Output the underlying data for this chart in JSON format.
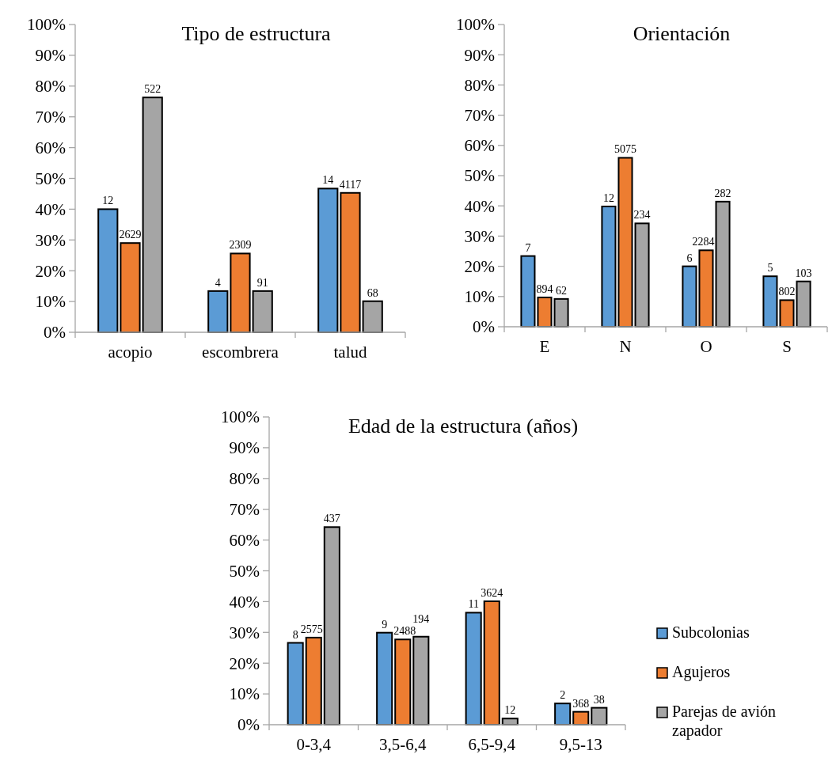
{
  "chart_data": [
    {
      "type": "bar",
      "title": "Tipo de estructura",
      "categories": [
        "acopio",
        "escombrera",
        "talud"
      ],
      "series": [
        {
          "color": "#5b9bd5",
          "values": [
            40,
            13.4,
            46.7
          ]
        },
        {
          "color": "#ed7d31",
          "values": [
            29,
            25.6,
            45.3
          ]
        },
        {
          "color": "#a5a5a5",
          "values": [
            76.3,
            13.4,
            10.1
          ]
        }
      ],
      "annotations": [
        "12",
        "4",
        "14",
        "2629",
        "2309",
        "4117",
        "522",
        "91",
        "68"
      ],
      "ylim": [
        0,
        100
      ],
      "yticks": [
        {
          "value": 0,
          "label": "0%"
        },
        {
          "value": 10,
          "label": "10%"
        },
        {
          "value": 20,
          "label": "20%"
        },
        {
          "value": 30,
          "label": "30%"
        },
        {
          "value": 40,
          "label": "40%"
        },
        {
          "value": 50,
          "label": "50%"
        },
        {
          "value": 60,
          "label": "60%"
        },
        {
          "value": 70,
          "label": "70%"
        },
        {
          "value": 80,
          "label": "80%"
        },
        {
          "value": 90,
          "label": "90%"
        },
        {
          "value": 100,
          "label": "100%"
        }
      ],
      "grid": false,
      "legend": false
    },
    {
      "type": "bar",
      "title": "Orientación",
      "categories": [
        "E",
        "N",
        "O",
        "S"
      ],
      "series": [
        {
          "color": "#5b9bd5",
          "values": [
            23.4,
            39.8,
            20,
            16.7
          ]
        },
        {
          "color": "#ed7d31",
          "values": [
            9.7,
            55.9,
            25.3,
            8.8
          ]
        },
        {
          "color": "#a5a5a5",
          "values": [
            9.2,
            34.2,
            41.4,
            15
          ]
        }
      ],
      "annotations": [
        "7",
        "12",
        "6",
        "5",
        "894",
        "5075",
        "2284",
        "802",
        "62",
        "234",
        "282",
        "103"
      ],
      "ylim": [
        0,
        100
      ],
      "yticks": [
        {
          "value": 0,
          "label": "0%"
        },
        {
          "value": 10,
          "label": "10%"
        },
        {
          "value": 20,
          "label": "20%"
        },
        {
          "value": 30,
          "label": "30%"
        },
        {
          "value": 40,
          "label": "40%"
        },
        {
          "value": 50,
          "label": "50%"
        },
        {
          "value": 60,
          "label": "60%"
        },
        {
          "value": 70,
          "label": "70%"
        },
        {
          "value": 80,
          "label": "80%"
        },
        {
          "value": 90,
          "label": "90%"
        },
        {
          "value": 100,
          "label": "100%"
        }
      ],
      "grid": false,
      "legend": false
    },
    {
      "type": "bar",
      "title": "Edad de la estructura (años)",
      "categories": [
        "0-3,4",
        "3,5-6,4",
        "6,5-9,4",
        "9,5-13"
      ],
      "series": [
        {
          "name": "Subcolonias",
          "color": "#5b9bd5",
          "values": [
            26.6,
            29.9,
            36.4,
            6.9
          ]
        },
        {
          "name": "Agujeros",
          "color": "#ed7d31",
          "values": [
            28.3,
            27.7,
            40.1,
            4.2
          ]
        },
        {
          "name": "Parejas de avión zapador",
          "color": "#a5a5a5",
          "values": [
            64.2,
            28.6,
            2,
            5.5
          ]
        }
      ],
      "annotations": [
        "8",
        "9",
        "11",
        "2",
        "2575",
        "2488",
        "3624",
        "368",
        "437",
        "194",
        "12",
        "38"
      ],
      "ylim": [
        0,
        100
      ],
      "yticks": [
        {
          "value": 0,
          "label": "0%"
        },
        {
          "value": 10,
          "label": "10%"
        },
        {
          "value": 20,
          "label": "20%"
        },
        {
          "value": 30,
          "label": "30%"
        },
        {
          "value": 40,
          "label": "40%"
        },
        {
          "value": 50,
          "label": "50%"
        },
        {
          "value": 60,
          "label": "60%"
        },
        {
          "value": 70,
          "label": "70%"
        },
        {
          "value": 80,
          "label": "80%"
        },
        {
          "value": 90,
          "label": "90%"
        },
        {
          "value": 100,
          "label": "100%"
        }
      ],
      "grid": false,
      "legend": "right"
    }
  ]
}
